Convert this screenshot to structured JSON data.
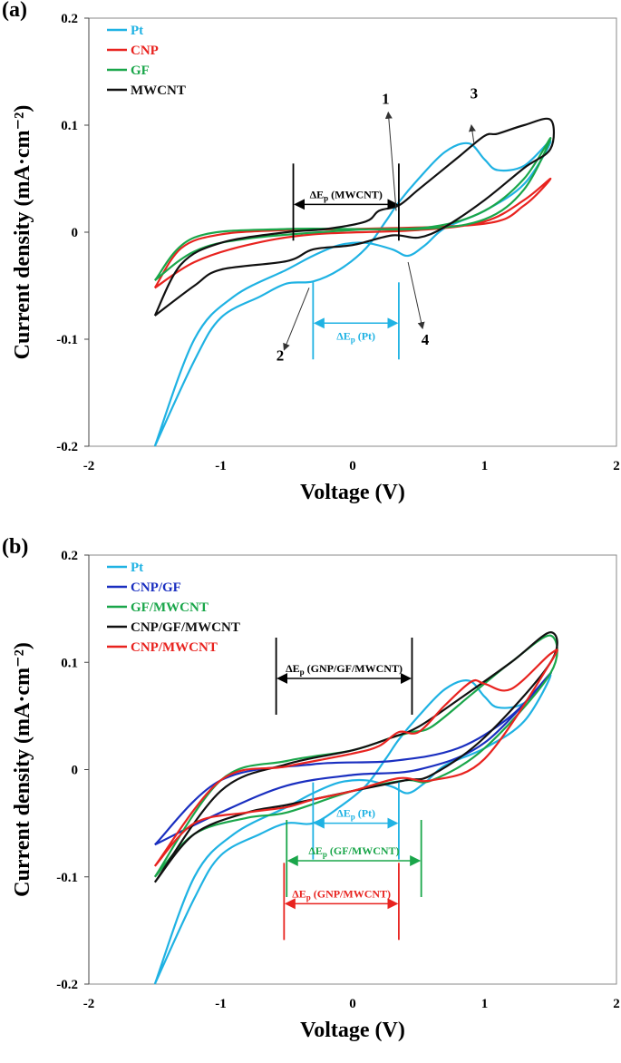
{
  "chart_data": [
    {
      "type": "line",
      "panel_label": "(a)",
      "xlabel": "Voltage (V)",
      "ylabel": "Current density (mA·cm⁻²)",
      "xlim": [
        -2,
        2
      ],
      "ylim": [
        -0.2,
        0.2
      ],
      "xticks": [
        "-2",
        "-1",
        "0",
        "1",
        "2"
      ],
      "yticks": [
        "-0.2",
        "-0.1",
        "0",
        "0.1",
        "0.2"
      ],
      "grid": false,
      "legend": "top-left",
      "series": [
        {
          "name": "Pt",
          "color": "#1fb2e3",
          "x": [
            -1.5,
            -1.2,
            -1.0,
            -0.7,
            -0.5,
            -0.3,
            -0.1,
            0.1,
            0.25,
            0.35,
            0.5,
            0.7,
            0.88,
            1.0,
            1.1,
            1.3,
            1.5,
            1.3,
            1.0,
            0.7,
            0.55,
            0.42,
            0.3,
            0.1,
            -0.1,
            -0.3,
            -0.5,
            -0.9,
            -1.2,
            -1.5
          ],
          "y": [
            -0.2,
            -0.12,
            -0.08,
            -0.06,
            -0.048,
            -0.046,
            -0.035,
            -0.015,
            0.01,
            0.028,
            0.05,
            0.075,
            0.083,
            0.068,
            0.058,
            0.062,
            0.085,
            0.045,
            0.02,
            0.004,
            -0.012,
            -0.022,
            -0.016,
            -0.01,
            -0.012,
            -0.022,
            -0.035,
            -0.06,
            -0.1,
            -0.2
          ]
        },
        {
          "name": "CNP",
          "color": "#e8231f",
          "x": [
            -1.5,
            -1.2,
            -0.8,
            -0.3,
            0.5,
            1.0,
            1.3,
            1.5,
            1.3,
            1.0,
            0.0,
            -0.5,
            -1.0,
            -1.3,
            -1.5
          ],
          "y": [
            -0.052,
            -0.028,
            -0.012,
            -0.002,
            0.002,
            0.01,
            0.03,
            0.05,
            0.025,
            0.008,
            0.003,
            0.002,
            -0.002,
            -0.015,
            -0.052
          ]
        },
        {
          "name": "GF",
          "color": "#1aa64a",
          "x": [
            -1.5,
            -1.2,
            -0.8,
            0.0,
            0.6,
            1.0,
            1.3,
            1.5,
            1.3,
            1.0,
            0.5,
            -0.5,
            -1.2,
            -1.5
          ],
          "y": [
            -0.045,
            -0.018,
            -0.006,
            0.002,
            0.005,
            0.02,
            0.05,
            0.088,
            0.04,
            0.012,
            0.003,
            0.003,
            -0.005,
            -0.045
          ]
        },
        {
          "name": "MWCNT",
          "color": "#111111",
          "x": [
            -1.5,
            -1.2,
            -1.0,
            -0.5,
            -0.3,
            0.0,
            0.3,
            0.5,
            0.7,
            1.0,
            1.3,
            1.5,
            1.5,
            1.3,
            1.1,
            1.0,
            0.8,
            0.5,
            0.35,
            0.2,
            0.1,
            -0.2,
            -0.5,
            -1.0,
            -1.3,
            -1.5
          ],
          "y": [
            -0.078,
            -0.05,
            -0.035,
            -0.027,
            -0.016,
            -0.012,
            -0.003,
            -0.005,
            0.005,
            0.03,
            0.06,
            0.078,
            0.105,
            0.1,
            0.092,
            0.09,
            0.07,
            0.04,
            0.025,
            0.02,
            0.01,
            0.003,
            0.0,
            -0.01,
            -0.03,
            -0.078
          ]
        }
      ],
      "annotations": [
        {
          "prefix": "ΔE",
          "sub": "p",
          "suffix": " (MWCNT)",
          "color": "#000000",
          "x1": -0.45,
          "x2": 0.35,
          "y": 0.026
        },
        {
          "prefix": "ΔE",
          "sub": "p",
          "suffix": " (Pt)",
          "color": "#1fb2e3",
          "x1": -0.3,
          "x2": 0.35,
          "y": -0.085
        },
        {
          "text": "1",
          "x": 0.25,
          "y": 0.12
        },
        {
          "text": "2",
          "x": -0.55,
          "y": -0.12
        },
        {
          "text": "3",
          "x": 0.92,
          "y": 0.125
        },
        {
          "text": "4",
          "x": 0.55,
          "y": -0.105
        }
      ]
    },
    {
      "type": "line",
      "panel_label": "(b)",
      "xlabel": "Voltage (V)",
      "ylabel": "Current density (mA·cm⁻²)",
      "xlim": [
        -2,
        2
      ],
      "ylim": [
        -0.2,
        0.2
      ],
      "xticks": [
        "-2",
        "-1",
        "0",
        "1",
        "2"
      ],
      "yticks": [
        "-0.2",
        "-0.1",
        "0",
        "0.1",
        "0.2"
      ],
      "grid": false,
      "legend": "top-left",
      "series": [
        {
          "name": "Pt",
          "color": "#1fb2e3",
          "x": [
            -1.5,
            -1.2,
            -1.0,
            -0.7,
            -0.5,
            -0.3,
            -0.1,
            0.1,
            0.25,
            0.35,
            0.5,
            0.7,
            0.88,
            1.0,
            1.1,
            1.3,
            1.5,
            1.3,
            1.0,
            0.7,
            0.55,
            0.42,
            0.3,
            0.1,
            -0.1,
            -0.3,
            -0.5,
            -0.9,
            -1.2,
            -1.5
          ],
          "y": [
            -0.2,
            -0.12,
            -0.08,
            -0.06,
            -0.05,
            -0.05,
            -0.035,
            -0.015,
            0.01,
            0.028,
            0.05,
            0.075,
            0.083,
            0.068,
            0.058,
            0.062,
            0.088,
            0.045,
            0.02,
            0.004,
            -0.012,
            -0.022,
            -0.016,
            -0.01,
            -0.012,
            -0.022,
            -0.035,
            -0.06,
            -0.1,
            -0.2
          ]
        },
        {
          "name": "CNP/GF",
          "color": "#1a2fc0",
          "x": [
            -1.5,
            -1.0,
            -0.5,
            0.0,
            0.5,
            1.0,
            1.5,
            1.2,
            0.8,
            0.3,
            -0.3,
            -1.0,
            -1.5
          ],
          "y": [
            -0.07,
            -0.04,
            -0.015,
            -0.005,
            0.0,
            0.025,
            0.09,
            0.05,
            0.02,
            0.008,
            0.005,
            -0.01,
            -0.07
          ]
        },
        {
          "name": "GF/MWCNT",
          "color": "#1aa64a",
          "x": [
            -1.5,
            -1.2,
            -0.8,
            -0.5,
            0.0,
            0.4,
            0.6,
            1.0,
            1.5,
            1.5,
            1.2,
            0.9,
            0.6,
            0.45,
            0.3,
            0.0,
            -0.5,
            -1.0,
            -1.5
          ],
          "y": [
            -0.1,
            -0.06,
            -0.045,
            -0.04,
            -0.02,
            -0.01,
            -0.01,
            0.02,
            0.09,
            0.125,
            0.1,
            0.07,
            0.04,
            0.035,
            0.03,
            0.018,
            0.008,
            -0.01,
            -0.1
          ]
        },
        {
          "name": "CNP/GF/MWCNT",
          "color": "#111111",
          "x": [
            -1.5,
            -1.2,
            -0.8,
            -0.5,
            0.0,
            0.4,
            0.6,
            1.0,
            1.5,
            1.5,
            1.2,
            0.8,
            0.5,
            0.3,
            0.0,
            -0.5,
            -1.0,
            -1.5
          ],
          "y": [
            -0.105,
            -0.06,
            -0.04,
            -0.033,
            -0.02,
            -0.01,
            -0.005,
            0.03,
            0.1,
            0.128,
            0.1,
            0.065,
            0.04,
            0.03,
            0.018,
            0.005,
            -0.02,
            -0.105
          ]
        },
        {
          "name": "CNP/MWCNT",
          "color": "#e8231f",
          "x": [
            -1.5,
            -1.2,
            -0.8,
            -0.5,
            -0.3,
            0.0,
            0.35,
            0.6,
            1.0,
            1.5,
            1.5,
            1.2,
            1.0,
            0.9,
            0.7,
            0.5,
            0.35,
            0.2,
            0.0,
            -0.5,
            -1.0,
            -1.5
          ],
          "y": [
            -0.09,
            -0.05,
            -0.04,
            -0.035,
            -0.028,
            -0.02,
            -0.008,
            -0.01,
            0.01,
            0.1,
            0.108,
            0.075,
            0.08,
            0.082,
            0.06,
            0.035,
            0.035,
            0.022,
            0.015,
            0.003,
            -0.01,
            -0.09
          ]
        }
      ],
      "annotations": [
        {
          "prefix": "ΔE",
          "sub": "p",
          "suffix": " (GNP/GF/MWCNT)",
          "color": "#000000",
          "x1": -0.58,
          "x2": 0.45,
          "y": 0.085
        },
        {
          "prefix": "ΔE",
          "sub": "p",
          "suffix": " (Pt)",
          "color": "#1fb2e3",
          "x1": -0.3,
          "x2": 0.35,
          "y": -0.05
        },
        {
          "prefix": "ΔE",
          "sub": "p",
          "suffix": " (GF/MWCNT)",
          "color": "#1aa64a",
          "x1": -0.5,
          "x2": 0.52,
          "y": -0.085
        },
        {
          "prefix": "ΔE",
          "sub": "p",
          "suffix": " (GNP/MWCNT)",
          "color": "#e8231f",
          "x1": -0.52,
          "x2": 0.35,
          "y": -0.125
        }
      ]
    }
  ]
}
